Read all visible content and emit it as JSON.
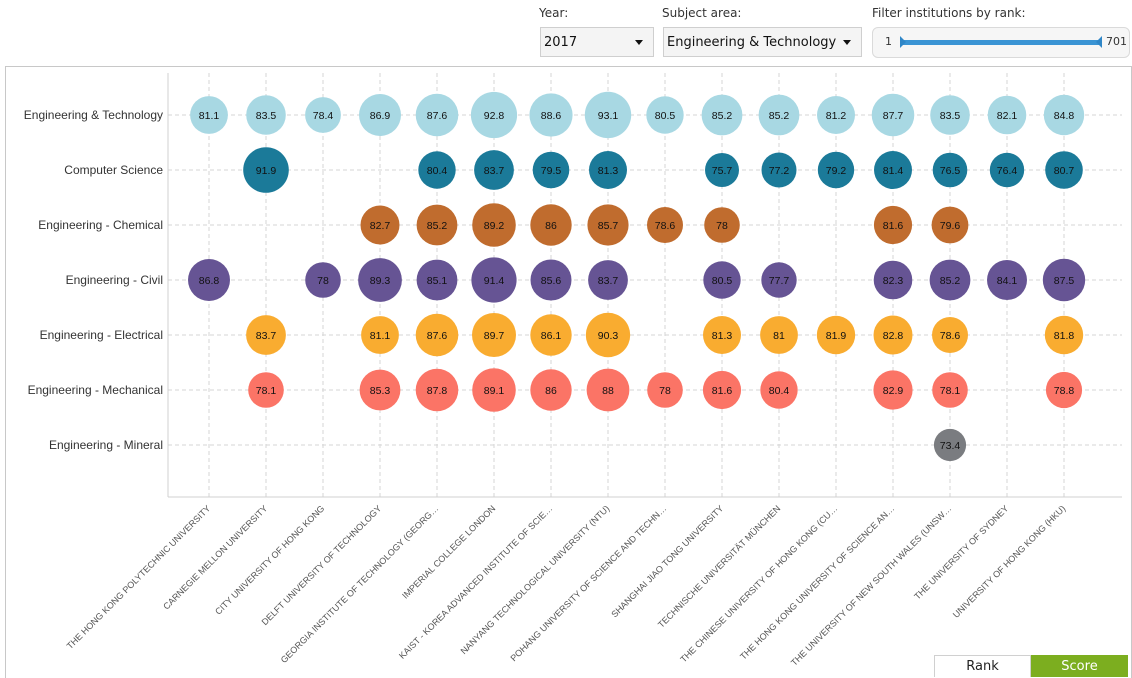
{
  "controls": {
    "year_label": "Year:",
    "year_value": "2017",
    "subject_label": "Subject area:",
    "subject_value": "Engineering & Technology",
    "rank_filter_label": "Filter institutions by rank:",
    "rank_min": "1",
    "rank_max": "701"
  },
  "toggles": {
    "rank": "Rank",
    "score": "Score",
    "active": "Score"
  },
  "chart_data": {
    "type": "scatter",
    "subtype": "bubble-matrix",
    "title": "",
    "xlabel": "",
    "ylabel": "",
    "grid": true,
    "categories_y": [
      "Engineering & Technology",
      "Computer Science",
      "Engineering - Chemical",
      "Engineering - Civil",
      "Engineering - Electrical",
      "Engineering - Mechanical",
      "Engineering - Mineral"
    ],
    "categories_x": [
      "THE HONG KONG POLYTECHNIC UNIVERSITY",
      "CARNEGIE MELLON UNIVERSITY",
      "CITY UNIVERSITY OF HONG KONG",
      "DELFT UNIVERSITY OF TECHNOLOGY",
      "GEORGIA INSTITUTE OF TECHNOLOGY (GEORG…",
      "IMPERIAL COLLEGE LONDON",
      "KAIST - KOREA ADVANCED INSTITUTE OF SCIE…",
      "NANYANG TECHNOLOGICAL UNIVERSITY (NTU)",
      "POHANG UNIVERSITY OF SCIENCE AND TECHN…",
      "SHANGHAI JIAO TONG UNIVERSITY",
      "TECHNISCHE UNIVERSITÄT MÜNCHEN",
      "THE CHINESE UNIVERSITY OF HONG KONG (CU…",
      "THE HONG KONG UNIVERSITY OF SCIENCE AN…",
      "THE UNIVERSITY OF NEW SOUTH WALES (UNSW…",
      "THE UNIVERSITY OF SYDNEY",
      "UNIVERSITY OF HONG KONG (HKU)"
    ],
    "series": [
      {
        "name": "Engineering & Technology",
        "color": "#a8d8e3",
        "values": [
          81.1,
          83.5,
          78.4,
          86.9,
          87.6,
          92.8,
          88.6,
          93.1,
          80.5,
          85.2,
          85.2,
          81.2,
          87.7,
          83.5,
          82.1,
          84.8
        ]
      },
      {
        "name": "Computer Science",
        "color": "#1b7a99",
        "values": [
          null,
          91.9,
          null,
          null,
          80.4,
          83.7,
          79.5,
          81.3,
          null,
          75.7,
          77.2,
          79.2,
          81.4,
          76.5,
          76.4,
          80.7
        ]
      },
      {
        "name": "Engineering - Chemical",
        "color": "#c06c2e",
        "values": [
          null,
          null,
          null,
          82.7,
          85.2,
          89.2,
          86,
          85.7,
          78.6,
          78,
          null,
          null,
          81.6,
          79.6,
          null,
          null
        ]
      },
      {
        "name": "Engineering - Civil",
        "color": "#665494",
        "values": [
          86.8,
          null,
          78,
          89.3,
          85.1,
          91.4,
          85.6,
          83.7,
          null,
          80.5,
          77.7,
          null,
          82.3,
          85.2,
          84.1,
          87.5
        ]
      },
      {
        "name": "Engineering - Electrical",
        "color": "#f9ac30",
        "values": [
          null,
          83.7,
          null,
          81.1,
          87.6,
          89.7,
          86.1,
          90.3,
          null,
          81.3,
          81,
          81.9,
          82.8,
          78.6,
          null,
          81.8
        ]
      },
      {
        "name": "Engineering - Mechanical",
        "color": "#fb7466",
        "values": [
          null,
          78.1,
          null,
          85.3,
          87.8,
          89.1,
          86,
          88,
          78,
          81.6,
          80.4,
          null,
          82.9,
          78.1,
          null,
          78.8
        ]
      },
      {
        "name": "Engineering - Mineral",
        "color": "#7a7c80",
        "values": [
          null,
          null,
          null,
          null,
          null,
          null,
          null,
          null,
          null,
          null,
          null,
          null,
          null,
          73.4,
          null,
          null
        ]
      }
    ]
  }
}
